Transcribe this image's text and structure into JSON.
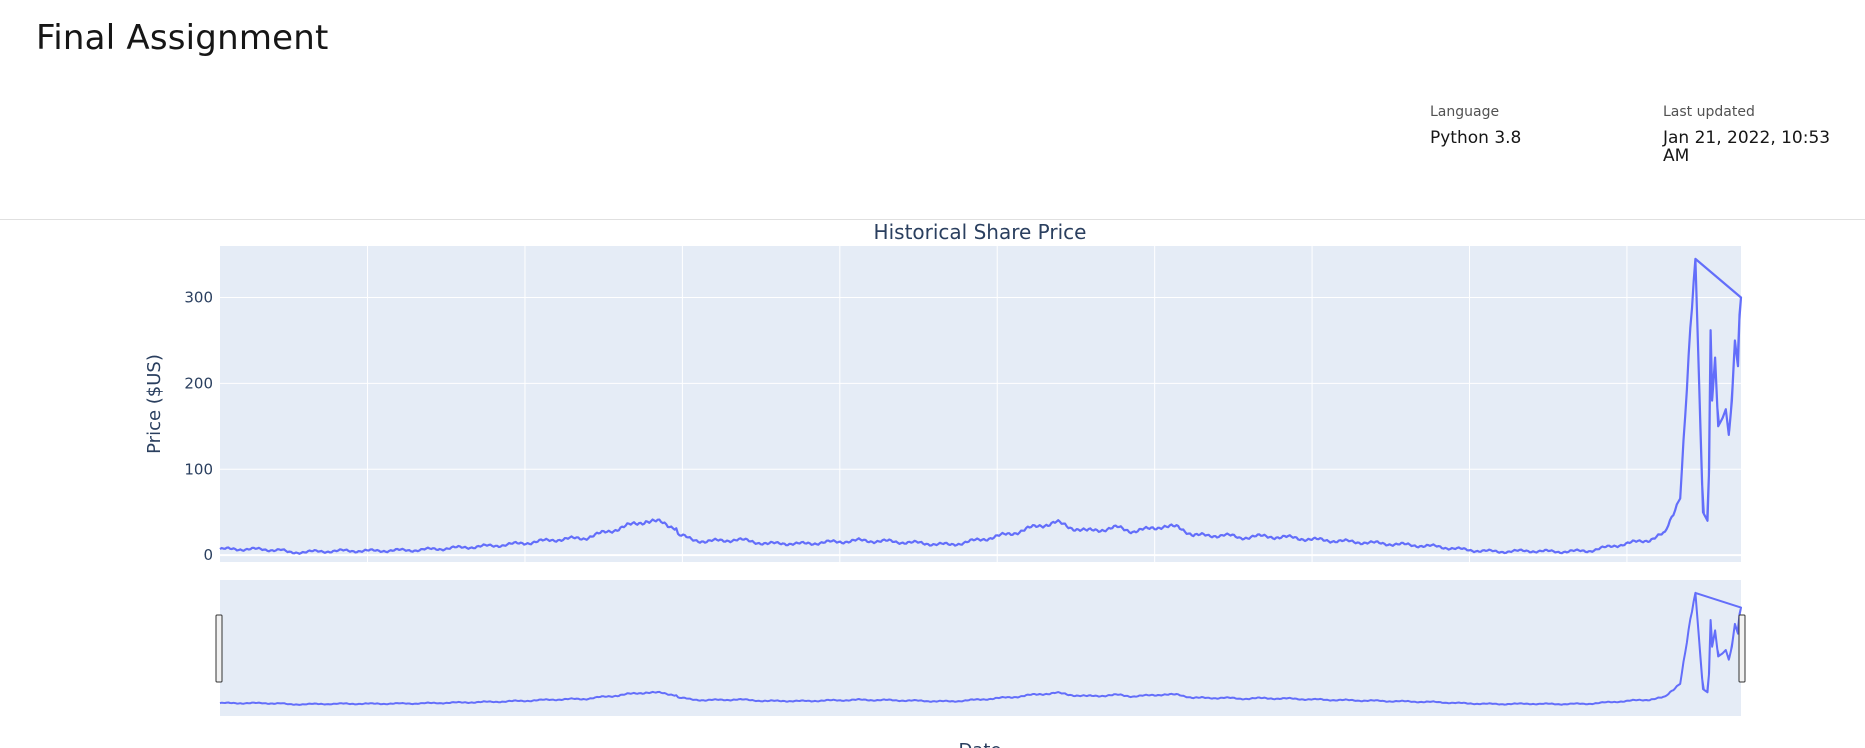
{
  "notebook": {
    "title": "Final Assignment",
    "language_label": "Language",
    "language_value": "Python 3.8",
    "updated_label": "Last updated",
    "updated_value": "Jan 21, 2022, 10:53 AM"
  },
  "chart_data": {
    "type": "line",
    "title": "Historical Share Price",
    "xlabel": "Date",
    "ylabel": "Price ($US)",
    "ylim": [
      -8,
      360
    ],
    "y_ticks": [
      0,
      100,
      200,
      300
    ],
    "grid": true,
    "rangeslider": true,
    "colors": {
      "line": "#636efa",
      "plot_bg": "#e5ecf6",
      "grid": "#ffffff",
      "text": "#2a3f5f"
    },
    "series": [
      {
        "x": [
          0.0,
          0.02,
          0.04,
          0.045,
          0.06,
          0.08,
          0.1,
          0.13,
          0.16,
          0.18,
          0.2,
          0.22,
          0.24,
          0.26,
          0.28,
          0.29,
          0.3,
          0.3,
          0.31,
          0.32,
          0.33,
          0.34,
          0.35,
          0.36,
          0.37,
          0.38,
          0.4,
          0.42,
          0.44,
          0.46,
          0.48,
          0.5,
          0.52,
          0.54,
          0.55,
          0.56,
          0.57,
          0.58,
          0.59,
          0.6,
          0.61,
          0.62,
          0.63,
          0.64,
          0.65,
          0.66,
          0.67,
          0.68,
          0.7,
          0.72,
          0.74,
          0.76,
          0.78,
          0.8,
          0.82,
          0.84,
          0.86,
          0.88,
          0.9,
          0.92,
          0.94,
          0.95,
          0.96,
          0.97,
          0.975,
          0.978,
          0.979,
          0.98,
          0.981,
          0.983,
          0.985,
          0.988,
          0.99,
          0.992,
          0.994,
          0.996,
          0.998,
          0.999,
          1.0
        ],
        "y": [
          7,
          7,
          6,
          3,
          4,
          5,
          5,
          6,
          9,
          11,
          14,
          18,
          20,
          30,
          40,
          38,
          32,
          25,
          18,
          16,
          17,
          18,
          16,
          13,
          14,
          13,
          15,
          17,
          16,
          14,
          12,
          18,
          25,
          35,
          38,
          32,
          28,
          30,
          32,
          28,
          30,
          34,
          32,
          24,
          22,
          24,
          20,
          22,
          21,
          18,
          16,
          14,
          12,
          10,
          6,
          4,
          5,
          4,
          5,
          12,
          18,
          25,
          70,
          345,
          50,
          40,
          100,
          262,
          180,
          230,
          150,
          160,
          170,
          140,
          180,
          250,
          220,
          280,
          300
        ]
      }
    ]
  }
}
